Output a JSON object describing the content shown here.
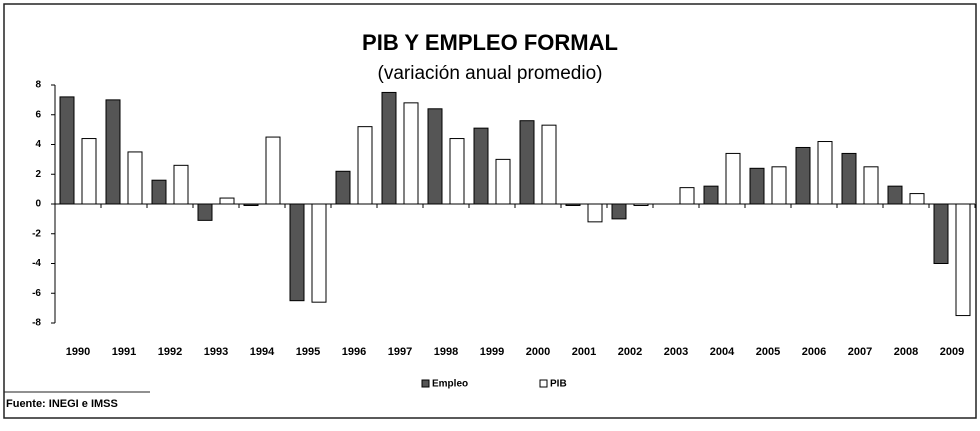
{
  "chart_data": {
    "type": "bar",
    "title": "PIB Y EMPLEO FORMAL",
    "subtitle": "(variación anual promedio)",
    "source": "Fuente: INEGI e IMSS",
    "categories": [
      "1990",
      "1991",
      "1992",
      "1993",
      "1994",
      "1995",
      "1996",
      "1997",
      "1998",
      "1999",
      "2000",
      "2001",
      "2002",
      "2003",
      "2004",
      "2005",
      "2006",
      "2007",
      "2008",
      "2009"
    ],
    "series": [
      {
        "name": "Empleo",
        "color": "#555555",
        "values": [
          7.2,
          7.0,
          1.6,
          -1.1,
          -0.1,
          -6.5,
          2.2,
          7.5,
          6.4,
          5.1,
          5.6,
          -0.1,
          -1.0,
          0.0,
          1.2,
          2.4,
          3.8,
          3.4,
          1.2,
          -4.0
        ]
      },
      {
        "name": "PIB",
        "color": "#ffffff",
        "values": [
          4.4,
          3.5,
          2.6,
          0.4,
          4.5,
          -6.6,
          5.2,
          6.8,
          4.4,
          3.0,
          5.3,
          -1.2,
          -0.1,
          1.1,
          3.4,
          2.5,
          4.2,
          2.5,
          0.7,
          -7.5
        ]
      }
    ],
    "ylim": [
      -8,
      8
    ],
    "yticks": [
      8,
      6,
      4,
      2,
      0,
      -2,
      -4,
      -6,
      -8
    ],
    "grid": false
  }
}
